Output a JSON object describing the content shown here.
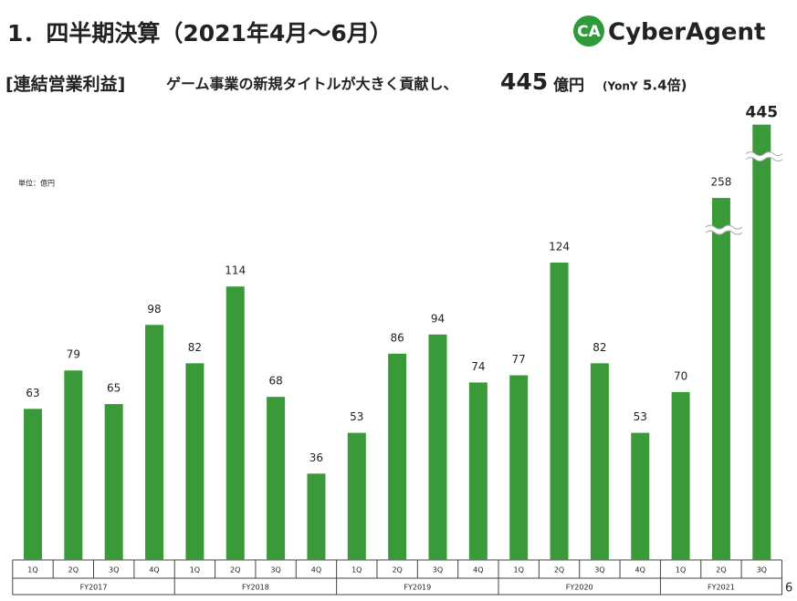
{
  "header": {
    "title": "1．四半期決算（2021年4月～6月）",
    "logo_mark": "CA",
    "logo_text": "CyberAgent"
  },
  "subtitle": {
    "bracket": "[連結営業利益]",
    "text": "ゲーム事業の新規タイトルが大きく貢献し、",
    "amount": "445",
    "unit": "億円",
    "yoy": "(YonY",
    "yoy_value": "5.4倍)"
  },
  "page_number": "6",
  "chart_data": {
    "type": "bar",
    "unit_label": "単位：億円",
    "color": "#3a9a3a",
    "groups": [
      {
        "name": "FY2017",
        "categories": [
          "1Q",
          "2Q",
          "3Q",
          "4Q"
        ],
        "values": [
          63,
          79,
          65,
          98
        ]
      },
      {
        "name": "FY2018",
        "categories": [
          "1Q",
          "2Q",
          "3Q",
          "4Q"
        ],
        "values": [
          82,
          114,
          68,
          36
        ]
      },
      {
        "name": "FY2019",
        "categories": [
          "1Q",
          "2Q",
          "3Q",
          "4Q"
        ],
        "values": [
          53,
          86,
          94,
          74
        ]
      },
      {
        "name": "FY2020",
        "categories": [
          "1Q",
          "2Q",
          "3Q",
          "4Q"
        ],
        "values": [
          77,
          124,
          82,
          53
        ]
      },
      {
        "name": "FY2021",
        "categories": [
          "1Q",
          "2Q",
          "3Q"
        ],
        "values": [
          70,
          258,
          445
        ]
      }
    ]
  }
}
